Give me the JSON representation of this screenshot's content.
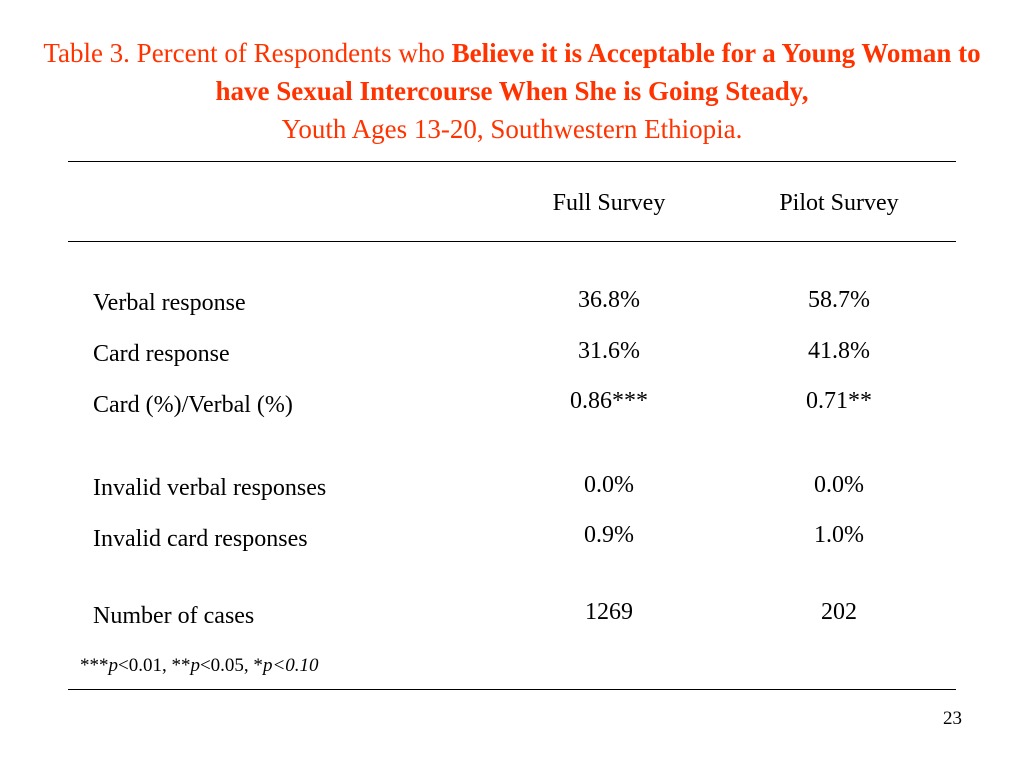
{
  "title": {
    "prefix": "Table 3. Percent of Respondents who ",
    "bold": "Believe it is Acceptable for a Young Woman to have Sexual Intercourse When She is Going Steady,",
    "suffix": "Youth Ages 13-20, Southwestern Ethiopia."
  },
  "columns": [
    "Full Survey",
    "Pilot Survey"
  ],
  "rows": [
    {
      "label": "Verbal response",
      "full": "36.8%",
      "pilot": "58.7%"
    },
    {
      "label": "Card response",
      "full": "31.6%",
      "pilot": "41.8%"
    },
    {
      "label": "Card (%)/Verbal (%)",
      "full": "0.86***",
      "pilot": "0.71**"
    },
    {
      "label": "Invalid verbal responses",
      "full": "0.0%",
      "pilot": "0.0%"
    },
    {
      "label": "Invalid card responses",
      "full": "0.9%",
      "pilot": "1.0%"
    },
    {
      "label": "Number of cases",
      "full": "1269",
      "pilot": "202"
    }
  ],
  "footnote": {
    "part1": "***",
    "p1": "p",
    "part2": "<0.01, **",
    "p2": "p",
    "part3": "<0.05, *",
    "p3": "p<0.10"
  },
  "page_number": "23",
  "colors": {
    "title": "#ff3300",
    "text": "#000000"
  }
}
